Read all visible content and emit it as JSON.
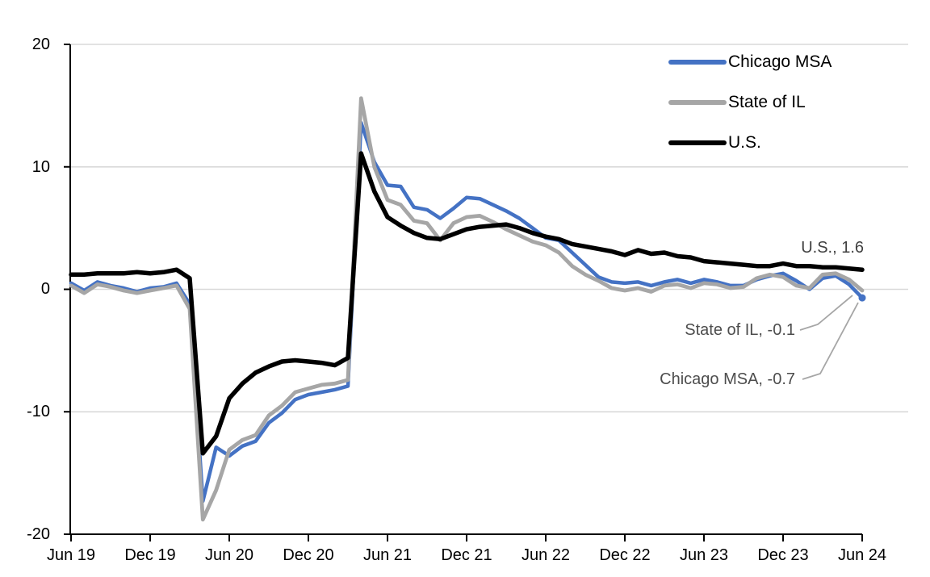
{
  "chart_data": {
    "type": "line",
    "title": "",
    "xlabel": "",
    "ylabel": "",
    "ylim": [
      -20,
      20
    ],
    "y_ticks": [
      20,
      10,
      0,
      -10,
      -20
    ],
    "y_tick_labels": [
      "20",
      "10",
      "0",
      "-10",
      "-20"
    ],
    "x_tick_labels": [
      "Jun 19",
      "Dec 19",
      "Jun 20",
      "Dec 20",
      "Jun 21",
      "Dec 21",
      "Jun 22",
      "Dec 22",
      "Jun 23",
      "Dec 23",
      "Jun 24"
    ],
    "grid": "horizontal",
    "legend_position": "top-right",
    "colors": {
      "grid": "#D9D9D9",
      "axis": "#000000",
      "leader": "#A6A6A6"
    },
    "x": [
      "Jun 19",
      "Jul 19",
      "Aug 19",
      "Sep 19",
      "Oct 19",
      "Nov 19",
      "Dec 19",
      "Jan 20",
      "Feb 20",
      "Mar 20",
      "Apr 20",
      "May 20",
      "Jun 20",
      "Jul 20",
      "Aug 20",
      "Sep 20",
      "Oct 20",
      "Nov 20",
      "Dec 20",
      "Jan 21",
      "Feb 21",
      "Mar 21",
      "Apr 21",
      "May 21",
      "Jun 21",
      "Jul 21",
      "Aug 21",
      "Sep 21",
      "Oct 21",
      "Nov 21",
      "Dec 21",
      "Jan 22",
      "Feb 22",
      "Mar 22",
      "Apr 22",
      "May 22",
      "Jun 22",
      "Jul 22",
      "Aug 22",
      "Sep 22",
      "Oct 22",
      "Nov 22",
      "Dec 22",
      "Jan 23",
      "Feb 23",
      "Mar 23",
      "Apr 23",
      "May 23",
      "Jun 23",
      "Jul 23",
      "Aug 23",
      "Sep 23",
      "Oct 23",
      "Nov 23",
      "Dec 23",
      "Jan 24",
      "Feb 24",
      "Mar 24",
      "Apr 24",
      "May 24",
      "Jun 24"
    ],
    "series": [
      {
        "name": "Chicago MSA",
        "color": "#4472C4",
        "end_dot": true,
        "end_value_label": "Chicago MSA, -0.7",
        "values": [
          0.5,
          -0.1,
          0.6,
          0.3,
          0.1,
          -0.2,
          0.1,
          0.2,
          0.5,
          -1.2,
          -17.3,
          -12.9,
          -13.6,
          -12.8,
          -12.4,
          -10.9,
          -10.1,
          -9.0,
          -8.6,
          -8.4,
          -8.2,
          -7.9,
          13.6,
          10.4,
          8.5,
          8.4,
          6.7,
          6.5,
          5.8,
          6.6,
          7.5,
          7.4,
          6.9,
          6.4,
          5.8,
          5.0,
          4.2,
          4.0,
          3.0,
          2.0,
          1.0,
          0.6,
          0.5,
          0.6,
          0.3,
          0.6,
          0.8,
          0.5,
          0.8,
          0.6,
          0.3,
          0.3,
          0.8,
          1.1,
          1.3,
          0.7,
          0.0,
          0.9,
          1.1,
          0.4,
          -0.7
        ]
      },
      {
        "name": "State of IL",
        "color": "#A6A6A6",
        "end_dot": false,
        "end_value_label": "State of IL, -0.1",
        "values": [
          0.3,
          -0.3,
          0.4,
          0.2,
          -0.1,
          -0.3,
          -0.1,
          0.1,
          0.3,
          -1.6,
          -18.8,
          -16.4,
          -13.1,
          -12.3,
          -11.9,
          -10.3,
          -9.5,
          -8.4,
          -8.1,
          -7.8,
          -7.7,
          -7.4,
          15.6,
          10.0,
          7.3,
          6.9,
          5.6,
          5.4,
          4.0,
          5.4,
          5.9,
          6.0,
          5.5,
          4.9,
          4.4,
          3.9,
          3.6,
          3.0,
          1.9,
          1.2,
          0.7,
          0.1,
          -0.1,
          0.1,
          -0.2,
          0.3,
          0.4,
          0.1,
          0.5,
          0.4,
          0.1,
          0.2,
          0.9,
          1.2,
          1.0,
          0.3,
          0.1,
          1.2,
          1.3,
          0.8,
          -0.1
        ]
      },
      {
        "name": "U.S.",
        "color": "#000000",
        "end_dot": false,
        "end_value_label": "U.S., 1.6",
        "values": [
          1.2,
          1.2,
          1.3,
          1.3,
          1.3,
          1.4,
          1.3,
          1.4,
          1.6,
          0.9,
          -13.4,
          -12.0,
          -8.9,
          -7.7,
          -6.8,
          -6.3,
          -5.9,
          -5.8,
          -5.9,
          -6.0,
          -6.2,
          -5.6,
          11.1,
          8.0,
          5.9,
          5.2,
          4.6,
          4.2,
          4.1,
          4.5,
          4.9,
          5.1,
          5.2,
          5.3,
          5.0,
          4.6,
          4.3,
          4.1,
          3.7,
          3.5,
          3.3,
          3.1,
          2.8,
          3.2,
          2.9,
          3.0,
          2.7,
          2.6,
          2.3,
          2.2,
          2.1,
          2.0,
          1.9,
          1.9,
          2.1,
          1.9,
          1.9,
          1.8,
          1.8,
          1.7,
          1.6
        ]
      }
    ],
    "annotations": [
      {
        "text": "U.S., 1.6"
      },
      {
        "text": "State of IL, -0.1"
      },
      {
        "text": "Chicago MSA, -0.7"
      }
    ]
  }
}
